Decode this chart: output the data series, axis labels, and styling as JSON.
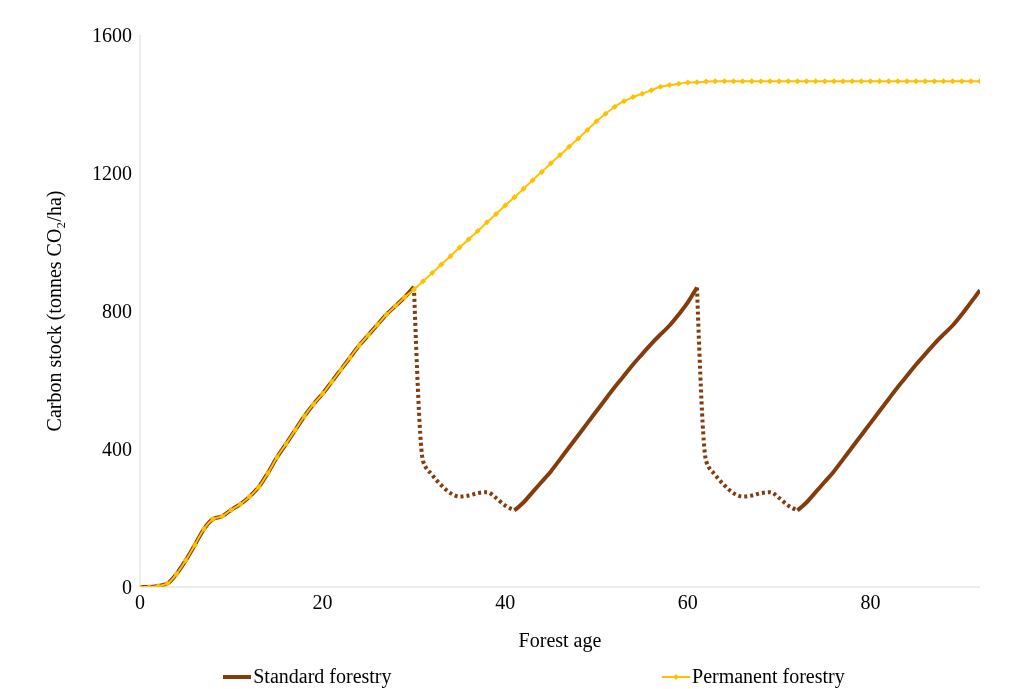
{
  "chart_data": {
    "type": "line",
    "xlabel": "Forest age",
    "ylabel": "Carbon stock (tonnes CO₂/ha)",
    "x": [
      0,
      1,
      2,
      3,
      4,
      5,
      6,
      7,
      8,
      9,
      10,
      11,
      12,
      13,
      14,
      15,
      16,
      17,
      18,
      19,
      20,
      21,
      22,
      23,
      24,
      25,
      26,
      27,
      28,
      29,
      30,
      31,
      32,
      33,
      34,
      35,
      36,
      37,
      38,
      39,
      40,
      41,
      42,
      43,
      44,
      45,
      46,
      47,
      48,
      49,
      50,
      51,
      52,
      53,
      54,
      55,
      56,
      57,
      58,
      59,
      60,
      61,
      62,
      63,
      64,
      65,
      66,
      67,
      68,
      69,
      70,
      71,
      72,
      73,
      74,
      75,
      76,
      77,
      78,
      79,
      80,
      81,
      82,
      83,
      84,
      85,
      86,
      87,
      88,
      89,
      90,
      91,
      92
    ],
    "xlim": [
      0,
      92
    ],
    "xticks": [
      0,
      20,
      40,
      60,
      80
    ],
    "ylim": [
      0,
      1600
    ],
    "yticks": [
      0,
      400,
      800,
      1200,
      1600
    ],
    "grid": false,
    "legend": "bottom",
    "series": [
      {
        "name": "Standard forestry",
        "color": "#843c0c",
        "line_style": "solid",
        "marker": "none",
        "values": [
          0,
          0,
          3,
          10,
          38,
          77,
          122,
          168,
          197,
          205,
          224,
          240,
          262,
          290,
          330,
          376,
          415,
          455,
          495,
          530,
          560,
          595,
          630,
          665,
          700,
          730,
          760,
          790,
          815,
          840,
          870,
          null,
          null,
          null,
          null,
          null,
          null,
          null,
          null,
          null,
          null,
          222,
          245,
          275,
          305,
          335,
          370,
          405,
          440,
          475,
          510,
          545,
          580,
          612,
          645,
          675,
          705,
          732,
          758,
          790,
          825,
          868,
          null,
          null,
          null,
          null,
          null,
          null,
          null,
          null,
          null,
          null,
          222,
          245,
          275,
          305,
          335,
          370,
          405,
          440,
          475,
          510,
          545,
          580,
          612,
          645,
          675,
          705,
          732,
          758,
          790,
          825,
          860
        ]
      },
      {
        "color": "#843c0c",
        "line_style": "dotted",
        "marker": "none",
        "values": [
          null,
          null,
          null,
          null,
          null,
          null,
          null,
          null,
          null,
          null,
          null,
          null,
          null,
          null,
          null,
          null,
          null,
          null,
          null,
          null,
          null,
          null,
          null,
          null,
          null,
          null,
          null,
          null,
          null,
          null,
          870,
          365,
          325,
          295,
          272,
          262,
          265,
          272,
          275,
          258,
          236,
          222,
          null,
          null,
          null,
          null,
          null,
          null,
          null,
          null,
          null,
          null,
          null,
          null,
          null,
          null,
          null,
          null,
          null,
          null,
          null,
          868,
          365,
          325,
          295,
          272,
          262,
          265,
          272,
          275,
          258,
          236,
          222,
          null,
          null,
          null,
          null,
          null,
          null,
          null,
          null,
          null,
          null,
          null,
          null,
          null,
          null,
          null,
          null,
          null,
          null,
          null,
          null
        ]
      },
      {
        "name": "Permanent forestry",
        "color": "#ffc000",
        "line_style": "solid",
        "marker": "diamond",
        "values": [
          0,
          0,
          3,
          10,
          38,
          77,
          122,
          168,
          197,
          205,
          224,
          240,
          262,
          290,
          330,
          376,
          415,
          455,
          495,
          530,
          560,
          595,
          630,
          665,
          700,
          730,
          760,
          790,
          815,
          840,
          862,
          886,
          910,
          935,
          959,
          984,
          1008,
          1032,
          1057,
          1081,
          1106,
          1130,
          1154,
          1179,
          1203,
          1228,
          1252,
          1276,
          1300,
          1325,
          1350,
          1372,
          1392,
          1408,
          1420,
          1430,
          1440,
          1450,
          1455,
          1459,
          1462,
          1463,
          1465,
          1466,
          1466,
          1466,
          1466,
          1466,
          1466,
          1466,
          1466,
          1466,
          1466,
          1466,
          1466,
          1466,
          1466,
          1466,
          1466,
          1466,
          1466,
          1466,
          1466,
          1466,
          1466,
          1466,
          1466,
          1466,
          1466,
          1466,
          1466,
          1466,
          1466
        ]
      }
    ]
  }
}
